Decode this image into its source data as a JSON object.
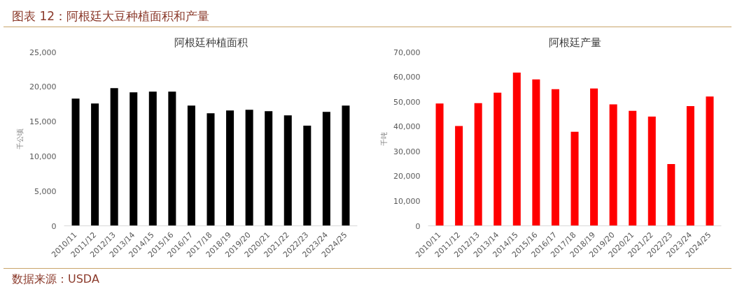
{
  "chart_data": [
    {
      "type": "bar",
      "title": "阿根廷种植面积",
      "ylabel": "千公顷",
      "annotations": [
        "图表 12：阿根廷大豆种植面积和产量",
        "数据来源：USDA"
      ],
      "categories": [
        "2010/11",
        "2011/12",
        "2012/13",
        "2013/14",
        "2014/15",
        "2015/16",
        "2016/17",
        "2017/18",
        "2018/19",
        "2019/20",
        "2020/21",
        "2021/22",
        "2022/23",
        "2023/24",
        "2024/25"
      ],
      "series": [
        {
          "color": "#000000",
          "values": [
            18300,
            17600,
            19800,
            19200,
            19300,
            19300,
            17300,
            16200,
            16600,
            16700,
            16500,
            15900,
            14400,
            16400,
            17300
          ]
        }
      ],
      "ylim": [
        0,
        25000
      ],
      "yticks": [
        {
          "value": 0,
          "label": "0"
        },
        {
          "value": 5000,
          "label": "5,000"
        },
        {
          "value": 10000,
          "label": "10,000"
        },
        {
          "value": 15000,
          "label": "15,000"
        },
        {
          "value": 20000,
          "label": "20,000"
        },
        {
          "value": 25000,
          "label": "25,000"
        }
      ],
      "grid": false
    },
    {
      "type": "bar",
      "title": "阿根廷产量",
      "ylabel": "千吨",
      "categories": [
        "2010/11",
        "2011/12",
        "2012/13",
        "2013/14",
        "2014/15",
        "2015/16",
        "2016/17",
        "2017/18",
        "2018/19",
        "2019/20",
        "2020/21",
        "2021/22",
        "2022/23",
        "2023/24",
        "2024/25"
      ],
      "series": [
        {
          "color": "#ff0000",
          "values": [
            49300,
            40200,
            49400,
            53600,
            61700,
            59000,
            55000,
            37900,
            55300,
            48900,
            46300,
            44000,
            24900,
            48200,
            52100
          ]
        }
      ],
      "ylim": [
        0,
        70000
      ],
      "yticks": [
        {
          "value": 0,
          "label": "0"
        },
        {
          "value": 10000,
          "label": "10,000"
        },
        {
          "value": 20000,
          "label": "20,000"
        },
        {
          "value": 30000,
          "label": "30,000"
        },
        {
          "value": 40000,
          "label": "40,000"
        },
        {
          "value": 50000,
          "label": "50,000"
        },
        {
          "value": 60000,
          "label": "60,000"
        },
        {
          "value": 70000,
          "label": "70,000"
        }
      ],
      "grid": false
    }
  ]
}
